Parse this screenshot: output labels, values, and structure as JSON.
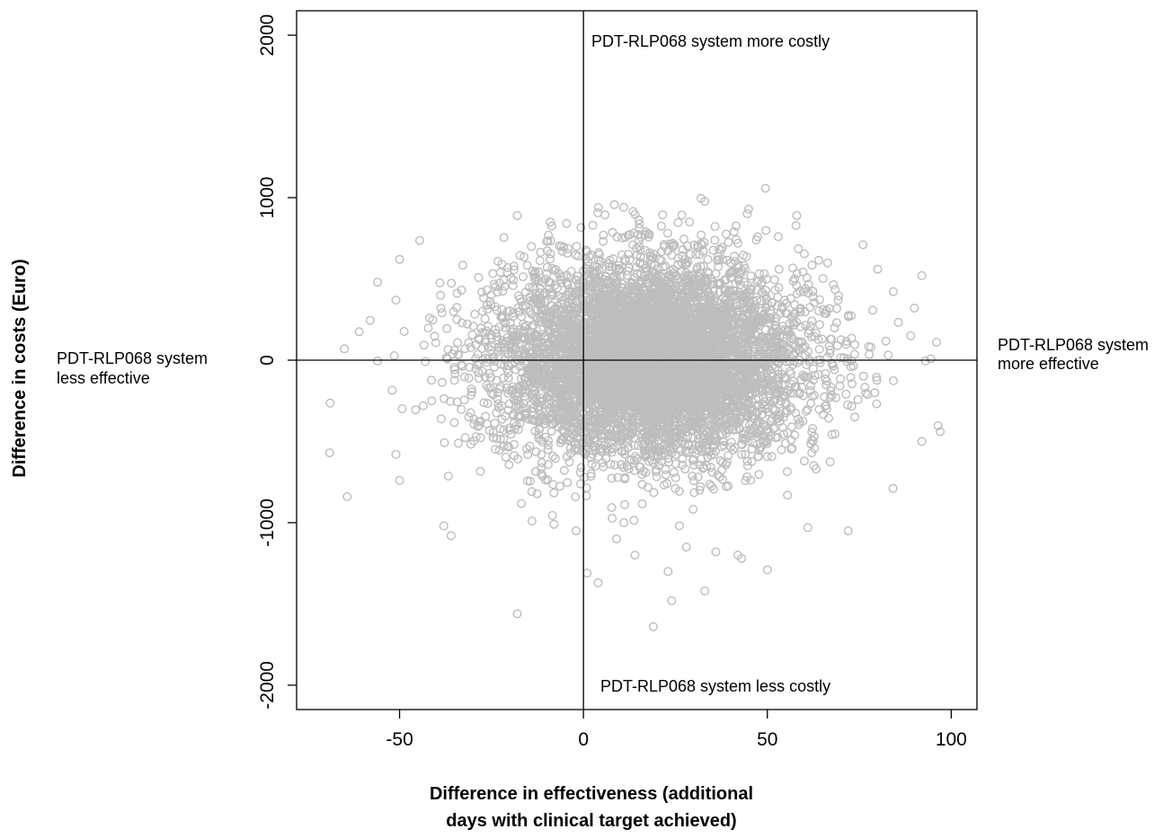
{
  "chart_data": {
    "type": "scatter",
    "title": "",
    "xlabel_lines": [
      "Difference in effectiveness (additional",
      "days with clinical target achieved)"
    ],
    "ylabel": "Difference in costs (Euro)",
    "xlim": [
      -78,
      107
    ],
    "ylim": [
      -2150,
      2150
    ],
    "x_ticks": [
      -50,
      0,
      50,
      100
    ],
    "y_ticks": [
      -2000,
      -1000,
      0,
      1000,
      2000
    ],
    "x_tick_labels": [
      "-50",
      "0",
      "50",
      "100"
    ],
    "y_tick_labels": [
      "-2000",
      "-1000",
      "0",
      "1000",
      "2000"
    ],
    "reference_lines": {
      "x": 0,
      "y": 0
    },
    "point_color": "#bdbdbd",
    "marker": "open-circle",
    "annotations": {
      "top": [
        "PDT-RLP068 system more costly"
      ],
      "bottom": [
        "PDT-RLP068 system less costly"
      ],
      "left": [
        "PDT-RLP068 system",
        "less effective"
      ],
      "right": [
        "PDT-RLP068 system",
        "more effective"
      ]
    },
    "simulation": {
      "n_points": 6500,
      "x_mean": 18,
      "x_sd": 21,
      "y_mean": 0,
      "y_sd": 300
    },
    "outlier_points": [
      {
        "x": -18,
        "y": 890
      },
      {
        "x": -9,
        "y": 850
      },
      {
        "x": 58,
        "y": 890
      },
      {
        "x": -69,
        "y": -570
      },
      {
        "x": -65,
        "y": 70
      },
      {
        "x": -61,
        "y": 175
      },
      {
        "x": -58,
        "y": 245
      },
      {
        "x": -56,
        "y": 480
      },
      {
        "x": -56,
        "y": -5
      },
      {
        "x": -50,
        "y": 620
      },
      {
        "x": -51,
        "y": -580
      },
      {
        "x": -50,
        "y": -740
      },
      {
        "x": -51,
        "y": 370
      },
      {
        "x": -52,
        "y": -185
      },
      {
        "x": -38,
        "y": -1020
      },
      {
        "x": -36,
        "y": -1080
      },
      {
        "x": -18,
        "y": -1560
      },
      {
        "x": 19,
        "y": -1640
      },
      {
        "x": 24,
        "y": -1480
      },
      {
        "x": 33,
        "y": -1420
      },
      {
        "x": 23,
        "y": -1300
      },
      {
        "x": 4,
        "y": -1370
      },
      {
        "x": 1,
        "y": -1310
      },
      {
        "x": 42,
        "y": -1200
      },
      {
        "x": 50,
        "y": -1290
      },
      {
        "x": 61,
        "y": -1030
      },
      {
        "x": 72,
        "y": -1050
      },
      {
        "x": 76,
        "y": 710
      },
      {
        "x": 80,
        "y": 560
      },
      {
        "x": 92,
        "y": 520
      },
      {
        "x": 97,
        "y": -440
      },
      {
        "x": 92,
        "y": -500
      },
      {
        "x": 96,
        "y": 110
      },
      {
        "x": 93,
        "y": -5
      },
      {
        "x": 90,
        "y": 320
      },
      {
        "x": 89,
        "y": 150
      },
      {
        "x": -10,
        "y": 730
      },
      {
        "x": -6,
        "y": 700
      },
      {
        "x": 17,
        "y": 790
      },
      {
        "x": 32,
        "y": 770
      },
      {
        "x": 53,
        "y": 760
      },
      {
        "x": 47,
        "y": 740
      },
      {
        "x": -14,
        "y": -990
      },
      {
        "x": -8,
        "y": -1010
      },
      {
        "x": -2,
        "y": -1050
      },
      {
        "x": 9,
        "y": -1100
      },
      {
        "x": 11,
        "y": -1000
      },
      {
        "x": 14,
        "y": -1200
      },
      {
        "x": 28,
        "y": -1150
      },
      {
        "x": 36,
        "y": -1180
      },
      {
        "x": 43,
        "y": -1220
      }
    ]
  }
}
